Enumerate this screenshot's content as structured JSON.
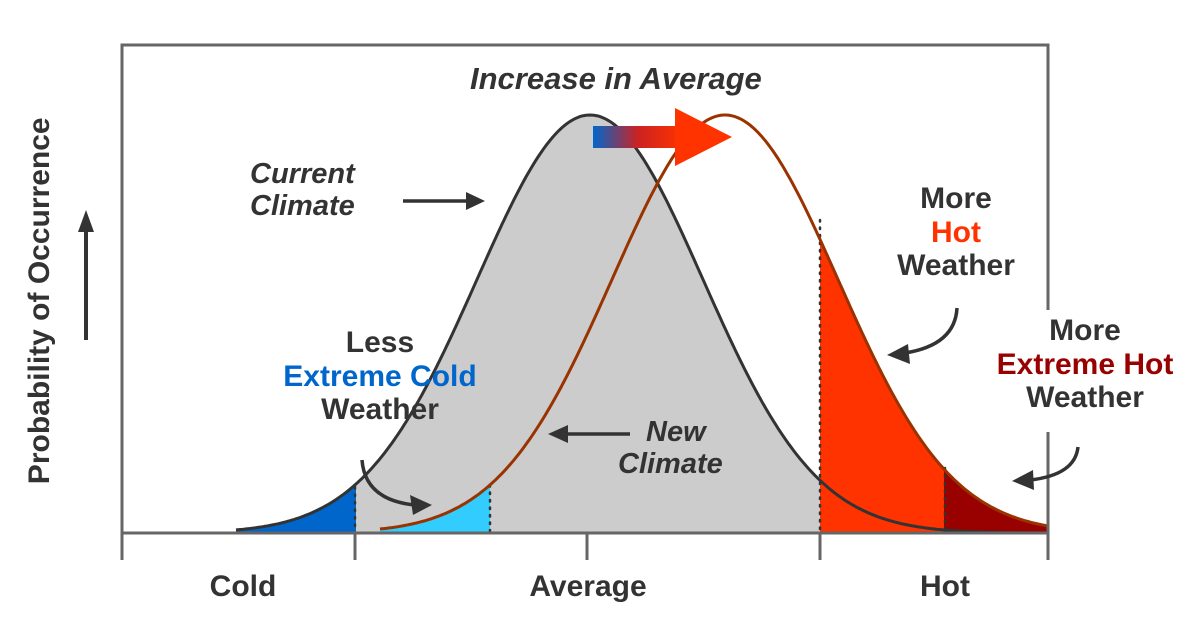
{
  "title": "Increase in Average",
  "y_axis_label": "Probability of Occurrence",
  "x_axis_labels": [
    "Cold",
    "Average",
    "Hot"
  ],
  "annotations": {
    "current_climate": [
      "Current",
      "Climate"
    ],
    "new_climate": [
      "New",
      "Climate"
    ],
    "less_cold": {
      "line1": "Less",
      "line2": "Extreme Cold",
      "line3": "Weather"
    },
    "more_hot": {
      "line1": "More",
      "line2": "Hot",
      "line3": "Weather"
    },
    "more_extreme_hot": {
      "line1": "More",
      "line2": "Extreme Hot",
      "line3": "Weather"
    }
  },
  "colors": {
    "current_fill": "#cccccc",
    "current_line": "#333333",
    "new_line": "#993300",
    "extreme_cold": "#0066cc",
    "less_cold_new": "#33ccff",
    "hot": "#ff3300",
    "extreme_hot": "#990000",
    "text": "#333333"
  }
}
